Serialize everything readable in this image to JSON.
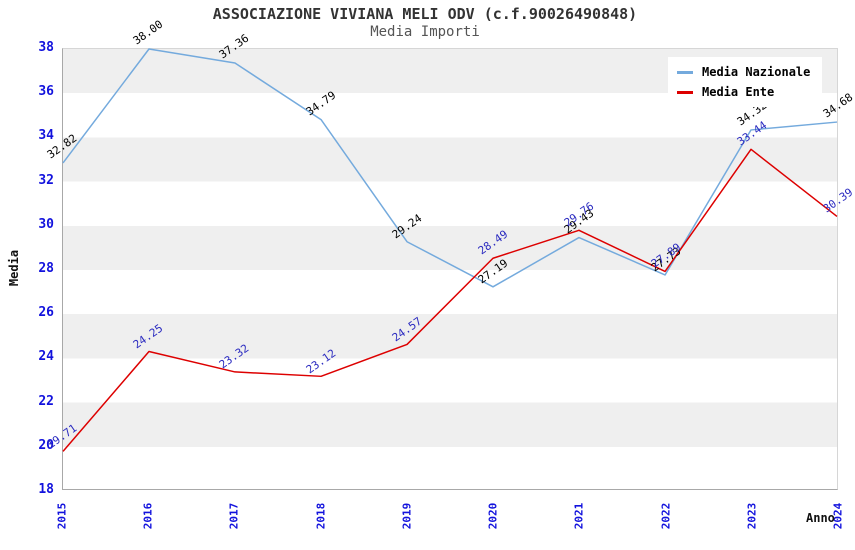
{
  "chart_data": {
    "type": "line",
    "title": "ASSOCIAZIONE VIVIANA MELI ODV (c.f.90026490848)",
    "subtitle": "Media Importi",
    "xlabel": "Anno",
    "ylabel": "Media",
    "categories": [
      "2015",
      "2016",
      "2017",
      "2018",
      "2019",
      "2020",
      "2021",
      "2022",
      "2023",
      "2024"
    ],
    "series": [
      {
        "name": "Media Nazionale",
        "color": "#74aadd",
        "label_color": "#000000",
        "values": [
          32.82,
          38.0,
          37.36,
          34.79,
          29.24,
          27.19,
          29.43,
          27.73,
          34.32,
          34.68
        ],
        "value_labels": [
          "32.82",
          "38.00",
          "37.36",
          "34.79",
          "29.24",
          "27.19",
          "29.43",
          "27.73",
          "34.32",
          "34.68"
        ]
      },
      {
        "name": "Media Ente",
        "color": "#dd0000",
        "label_color": "#2b2bc0",
        "values": [
          19.71,
          24.25,
          23.32,
          23.12,
          24.57,
          28.49,
          29.76,
          27.89,
          33.44,
          30.39
        ],
        "value_labels": [
          "19.71",
          "24.25",
          "23.32",
          "23.12",
          "24.57",
          "28.49",
          "29.76",
          "27.89",
          "33.44",
          "30.39"
        ]
      }
    ],
    "ylim": [
      18,
      38
    ],
    "ytick_step": 2,
    "tick_color": "#1212dd",
    "grid": "horizontal-bands",
    "band_colors": [
      "#efefef",
      "#ffffff"
    ],
    "legend_position": "top-right"
  }
}
